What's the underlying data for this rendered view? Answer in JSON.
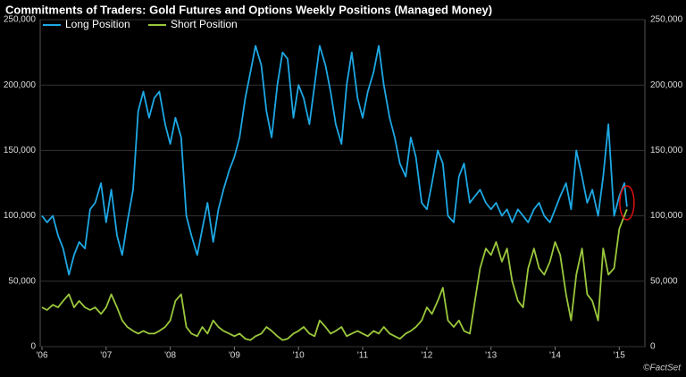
{
  "chart_data": {
    "type": "line",
    "title": "Commitments of Traders: Gold Futures and Options Weekly Positions (Managed Money)",
    "source": "©FactSet",
    "x": [
      2006,
      2006.08,
      2006.17,
      2006.25,
      2006.33,
      2006.42,
      2006.5,
      2006.58,
      2006.67,
      2006.75,
      2006.83,
      2006.92,
      2007,
      2007.08,
      2007.17,
      2007.25,
      2007.33,
      2007.42,
      2007.5,
      2007.58,
      2007.67,
      2007.75,
      2007.83,
      2007.92,
      2008,
      2008.08,
      2008.17,
      2008.25,
      2008.33,
      2008.42,
      2008.5,
      2008.58,
      2008.67,
      2008.75,
      2008.83,
      2008.92,
      2009,
      2009.08,
      2009.17,
      2009.25,
      2009.33,
      2009.42,
      2009.5,
      2009.58,
      2009.67,
      2009.75,
      2009.83,
      2009.92,
      2010,
      2010.08,
      2010.17,
      2010.25,
      2010.33,
      2010.42,
      2010.5,
      2010.58,
      2010.67,
      2010.75,
      2010.83,
      2010.92,
      2011,
      2011.08,
      2011.17,
      2011.25,
      2011.33,
      2011.42,
      2011.5,
      2011.58,
      2011.67,
      2011.75,
      2011.83,
      2011.92,
      2012,
      2012.08,
      2012.17,
      2012.25,
      2012.33,
      2012.42,
      2012.5,
      2012.58,
      2012.67,
      2012.75,
      2012.83,
      2012.92,
      2013,
      2013.08,
      2013.17,
      2013.25,
      2013.33,
      2013.42,
      2013.5,
      2013.58,
      2013.67,
      2013.75,
      2013.83,
      2013.92,
      2014,
      2014.08,
      2014.17,
      2014.25,
      2014.33,
      2014.42,
      2014.5,
      2014.58,
      2014.67,
      2014.75,
      2014.83,
      2014.92,
      2015,
      2015.08,
      2015.12
    ],
    "series": [
      {
        "name": "Long Position",
        "color": "#1ea8e4",
        "values": [
          100000,
          95000,
          100000,
          85000,
          75000,
          55000,
          70000,
          80000,
          75000,
          105000,
          110000,
          125000,
          95000,
          120000,
          85000,
          70000,
          95000,
          120000,
          180000,
          195000,
          175000,
          190000,
          195000,
          170000,
          155000,
          175000,
          160000,
          100000,
          85000,
          70000,
          90000,
          110000,
          80000,
          105000,
          120000,
          135000,
          145000,
          160000,
          190000,
          210000,
          230000,
          215000,
          180000,
          160000,
          200000,
          225000,
          220000,
          175000,
          200000,
          190000,
          170000,
          200000,
          230000,
          215000,
          195000,
          170000,
          155000,
          200000,
          225000,
          190000,
          175000,
          195000,
          210000,
          230000,
          200000,
          175000,
          160000,
          140000,
          130000,
          160000,
          145000,
          110000,
          105000,
          125000,
          150000,
          140000,
          100000,
          95000,
          130000,
          140000,
          110000,
          115000,
          120000,
          110000,
          105000,
          110000,
          100000,
          105000,
          95000,
          105000,
          100000,
          95000,
          105000,
          110000,
          100000,
          95000,
          105000,
          115000,
          125000,
          105000,
          150000,
          130000,
          110000,
          120000,
          100000,
          130000,
          170000,
          100000,
          115000,
          125000,
          107000
        ]
      },
      {
        "name": "Short Position",
        "color": "#9bc83c",
        "values": [
          30000,
          28000,
          32000,
          30000,
          35000,
          40000,
          30000,
          35000,
          30000,
          28000,
          30000,
          25000,
          30000,
          40000,
          30000,
          20000,
          15000,
          12000,
          10000,
          12000,
          10000,
          10000,
          12000,
          15000,
          20000,
          35000,
          40000,
          15000,
          10000,
          8000,
          15000,
          10000,
          20000,
          15000,
          12000,
          10000,
          8000,
          10000,
          6000,
          5000,
          8000,
          10000,
          15000,
          12000,
          8000,
          5000,
          6000,
          10000,
          12000,
          15000,
          10000,
          8000,
          20000,
          15000,
          10000,
          12000,
          15000,
          8000,
          10000,
          12000,
          10000,
          8000,
          12000,
          10000,
          15000,
          10000,
          8000,
          6000,
          10000,
          12000,
          15000,
          20000,
          30000,
          25000,
          35000,
          45000,
          20000,
          15000,
          20000,
          12000,
          10000,
          35000,
          60000,
          75000,
          70000,
          80000,
          65000,
          75000,
          50000,
          35000,
          30000,
          60000,
          75000,
          60000,
          55000,
          65000,
          80000,
          70000,
          40000,
          20000,
          55000,
          75000,
          40000,
          35000,
          20000,
          75000,
          55000,
          60000,
          90000,
          100000,
          105000
        ]
      }
    ],
    "xlim": [
      2006,
      2015.4
    ],
    "xticks": [
      {
        "value": 2006,
        "label": "'06"
      },
      {
        "value": 2007,
        "label": "'07"
      },
      {
        "value": 2008,
        "label": "'08"
      },
      {
        "value": 2009,
        "label": "'09"
      },
      {
        "value": 2010,
        "label": "'10"
      },
      {
        "value": 2011,
        "label": "'11"
      },
      {
        "value": 2012,
        "label": "'12"
      },
      {
        "value": 2013,
        "label": "'13"
      },
      {
        "value": 2014,
        "label": "'14"
      },
      {
        "value": 2015,
        "label": "'15"
      }
    ],
    "ylim": [
      0,
      250000
    ],
    "yticks": [
      0,
      {
        "value": 50000,
        "label": "50,000"
      },
      {
        "value": 100000,
        "label": "100,000"
      },
      {
        "value": 150000,
        "label": "150,000"
      },
      {
        "value": 200000,
        "label": "200,000"
      },
      {
        "value": 250000,
        "label": "250,000"
      }
    ],
    "y2lim": [
      0,
      250000
    ],
    "y2ticks": [
      0,
      {
        "value": 50000,
        "label": "50,000"
      },
      {
        "value": 100000,
        "label": "100,000"
      },
      {
        "value": 150000,
        "label": "150,000"
      },
      {
        "value": 200000,
        "label": "200,000"
      },
      {
        "value": 250000,
        "label": "250,000"
      }
    ],
    "grid": true
  }
}
